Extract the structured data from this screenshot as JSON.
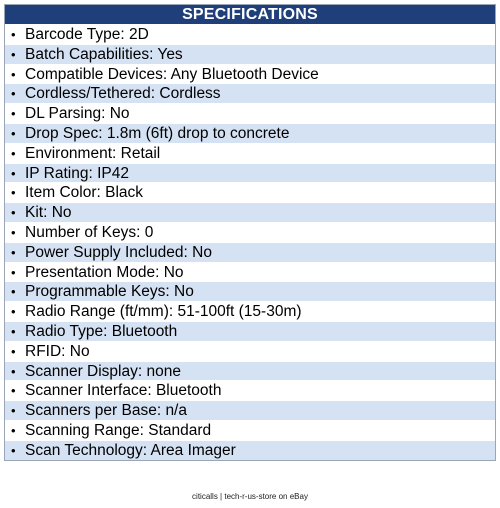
{
  "header": {
    "title": "SPECIFICATIONS"
  },
  "bullet": "•",
  "specs": [
    "Barcode Type: 2D",
    "Batch Capabilities: Yes",
    "Compatible Devices: Any Bluetooth Device",
    "Cordless/Tethered: Cordless",
    "DL Parsing: No",
    "Drop Spec: 1.8m (6ft) drop to concrete",
    "Environment: Retail",
    "IP Rating: IP42",
    "Item Color: Black",
    "Kit: No",
    "Number of Keys: 0",
    "Power Supply Included: No",
    "Presentation Mode: No",
    "Programmable Keys: No",
    "Radio Range (ft/mm): 51-100ft (15-30m)",
    "Radio Type: Bluetooth",
    "RFID: No",
    "Scanner Display: none",
    "Scanner Interface: Bluetooth",
    "Scanners per Base: n/a",
    "Scanning Range: Standard",
    "Scan Technology: Area Imager"
  ],
  "footer": {
    "text": "citicalls | tech-r-us-store on eBay"
  }
}
